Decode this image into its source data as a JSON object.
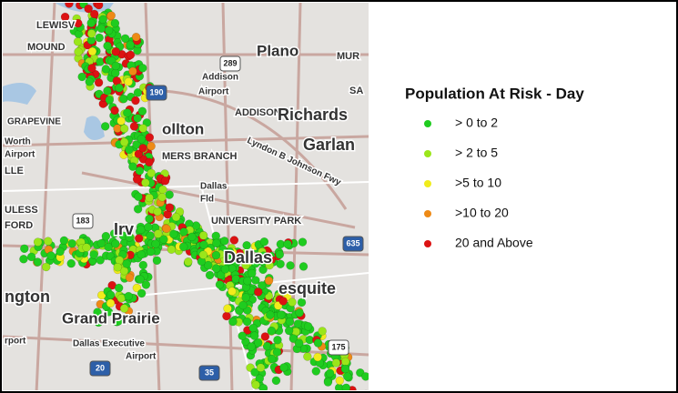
{
  "map": {
    "labels": [
      "LEWISV",
      "MOUND",
      "Plano",
      "MUR",
      "Addison",
      "Airport",
      "ADDISON",
      "Richards",
      "GRAPEVINE",
      "ollton",
      "Garlan",
      "Worth",
      "Airport",
      "Lyndon B Johnson Fwy",
      "MERS BRANCH",
      "LLE",
      "Dallas",
      "Fld",
      "ULESS",
      "FORD",
      "UNIVERSITY PARK",
      "Irv",
      "Dallas",
      "esquite",
      "ngton",
      "Grand Prairie",
      "Dallas Executive",
      "Airport",
      "rport",
      "SA"
    ],
    "highways": [
      "190",
      "289",
      "183",
      "635",
      "20",
      "35",
      "175"
    ]
  },
  "legend": {
    "title": "Population At Risk - Day",
    "items": [
      {
        "label": "> 0 to 2",
        "color": "#1fcc1f"
      },
      {
        "label": "> 2 to 5",
        "color": "#9be61a"
      },
      {
        "label": ">5 to 10",
        "color": "#f0ec1c"
      },
      {
        "label": ">10 to 20",
        "color": "#ee8a16"
      },
      {
        "label": "20 and Above",
        "color": "#dc1212"
      }
    ]
  }
}
